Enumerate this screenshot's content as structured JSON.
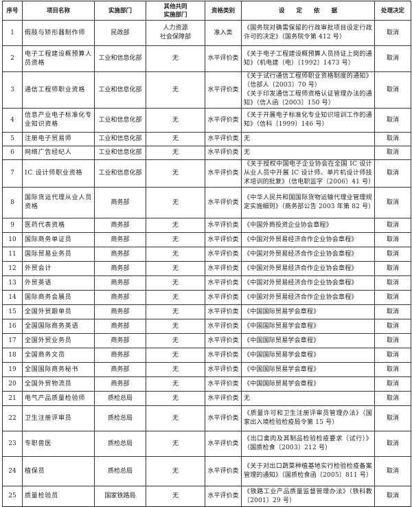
{
  "headers": {
    "index": "序号",
    "name": "项目名称",
    "dept": "实施部门",
    "co_dept_1": "其他共同",
    "co_dept_2": "实施部门",
    "category": "资格类别",
    "basis": "设　　定　　依　　据",
    "decision": "处理决定"
  },
  "rows": [
    {
      "no": "1",
      "name": "假肢与矫形器制作师",
      "dept": "民政部",
      "co": [
        "人力资源",
        "社会保障部"
      ],
      "category": "准入类",
      "basis": [
        "《国务院对确需保留的行政审批项目设定行政许可的决定》（国务院令第 412 号）"
      ],
      "decision": "取消"
    },
    {
      "no": "2",
      "name": "电子工程建设概预算人员资格",
      "dept": "工业和信息化部",
      "co": [
        "无"
      ],
      "category": "水平评价类",
      "basis": [
        "《关于电子工程建设概预算人员持证上岗的通知》（机电建（电）〔1992〕1473 号）"
      ],
      "decision": "取消"
    },
    {
      "no": "3",
      "name": "通信工程师职业资格",
      "dept": "工业和信息化部",
      "co": [
        "无"
      ],
      "category": "水平评价类",
      "basis": [
        "《关于试行通信工程师职业资格制度的通知》（信部人〔2003〕70 号）",
        "《关于印发通信工程师资格认证管理办法的通知》（信人函〔2003〕150 号）"
      ],
      "decision": "取消"
    },
    {
      "no": "4",
      "name": "信息产业电子标准化专业知识资格",
      "dept": "工业和信息化部",
      "co": [
        "无"
      ],
      "category": "水平评价类",
      "basis": [
        "《关于开展电子标准化专业知识培训工作的通知》（信科〔1999〕146 号）"
      ],
      "decision": "取消"
    },
    {
      "no": "5",
      "name": "注册电子贸易师",
      "dept": "工业和信息化部",
      "co": [
        "无"
      ],
      "category": "水平评价类",
      "basis": [
        "无"
      ],
      "decision": "取消"
    },
    {
      "no": "6",
      "name": "网络广告经纪人",
      "dept": "工业和信息化部",
      "co": [
        "无"
      ],
      "category": "水平评价类",
      "basis": [
        "无"
      ],
      "decision": "取消"
    },
    {
      "no": "7",
      "name": "IC 设计师职业资格",
      "dept": "工业和信息化部",
      "co": [
        "无"
      ],
      "category": "水平评价类",
      "basis": [
        "《关于授权中国电子企业协会在全国 IC 设计从业人员中开展 IC 设计师、单片机设计师技术培训的批复》（信电职监字〔2006〕41 号）"
      ],
      "decision": "取消"
    },
    {
      "no": "8",
      "name": "国际货运代理从业人员资格",
      "dept": "商务部",
      "co": [
        "无"
      ],
      "category": "水平评价类",
      "basis": [
        "《中华人民共和国国际货物运输代理业管理规定实施细则》（商务部公告 2003 年第 82 号）"
      ],
      "decision": "取消"
    },
    {
      "no": "9",
      "name": "医药代表资格",
      "dept": "商务部",
      "co": [
        "无"
      ],
      "category": "水平评价类",
      "basis": [
        "《中国外商投资企业协会章程》"
      ],
      "decision": "取消"
    },
    {
      "no": "10",
      "name": "国际商务单证员",
      "dept": "商务部",
      "co": [
        "无"
      ],
      "category": "水平评价类",
      "basis": [
        "《中国对外贸易经济合作企业协会章程》"
      ],
      "decision": "取消"
    },
    {
      "no": "11",
      "name": "国际贸易业务员",
      "dept": "商务部",
      "co": [
        "无"
      ],
      "category": "水平评价类",
      "basis": [
        "《中国对外贸易经济合作企业协会章程》"
      ],
      "decision": "取消"
    },
    {
      "no": "12",
      "name": "外贸会计",
      "dept": "商务部",
      "co": [
        "无"
      ],
      "category": "水平评价类",
      "basis": [
        "《中国对外贸易经济合作企业协会章程》"
      ],
      "decision": "取消"
    },
    {
      "no": "13",
      "name": "外贸英语",
      "dept": "商务部",
      "co": [
        "无"
      ],
      "category": "水平评价类",
      "basis": [
        "《中国对外贸易经济合作企业协会章程》"
      ],
      "decision": "取消"
    },
    {
      "no": "14",
      "name": "国际商务会展员",
      "dept": "商务部",
      "co": [
        "无"
      ],
      "category": "水平评价类",
      "basis": [
        "《中国对外贸易经济合作企业协会章程》"
      ],
      "decision": "取消"
    },
    {
      "no": "15",
      "name": "全国外贸跟单员",
      "dept": "商务部",
      "co": [
        "无"
      ],
      "category": "水平评价类",
      "basis": [
        "《中国国际贸易学会章程》"
      ],
      "decision": "取消"
    },
    {
      "no": "16",
      "name": "全国国际商务英语",
      "dept": "商务部",
      "co": [
        "无"
      ],
      "category": "水平评价类",
      "basis": [
        "《中国国际贸易学会章程》"
      ],
      "decision": "取消"
    },
    {
      "no": "17",
      "name": "全国外贸业务员",
      "dept": "商务部",
      "co": [
        "无"
      ],
      "category": "水平评价类",
      "basis": [
        "《中国国际贸易学会章程》"
      ],
      "decision": "取消"
    },
    {
      "no": "18",
      "name": "全国商务文员",
      "dept": "商务部",
      "co": [
        "无"
      ],
      "category": "水平评价类",
      "basis": [
        "《中国国际贸易学会章程》"
      ],
      "decision": "取消"
    },
    {
      "no": "19",
      "name": "全国国际商务秘书",
      "dept": "商务部",
      "co": [
        "无"
      ],
      "category": "水平评价类",
      "basis": [
        "《中国国际贸易学会章程》"
      ],
      "decision": "取消"
    },
    {
      "no": "20",
      "name": "全国外贸物流员",
      "dept": "商务部",
      "co": [
        "无"
      ],
      "category": "水平评价类",
      "basis": [
        "《中国国际贸易学会章程》"
      ],
      "decision": "取消"
    },
    {
      "no": "21",
      "name": "电气产品质量检验师",
      "dept": "质检总局",
      "co": [
        "无"
      ],
      "category": "水平评价类",
      "basis": [
        "无"
      ],
      "decision": "取消"
    },
    {
      "no": "22",
      "name": "卫生注册评审员",
      "dept": "质检总局",
      "co": [
        "无"
      ],
      "category": "水平评价类",
      "basis": [
        "《质量许可和卫生注册评审员管理办法》（国家出入境检验检疫局令第 15 号）"
      ],
      "decision": "取消"
    },
    {
      "no": "23",
      "name": "专职兽医",
      "dept": "质检总局",
      "co": [
        "无"
      ],
      "category": "水平评价类",
      "basis": [
        "《出口禽肉及其制品检验检疫要求（试行）》（国质检食〔2003〕212 号）"
      ],
      "decision": "取消"
    },
    {
      "no": "24",
      "name": "植保员",
      "dept": "质检总局",
      "co": [
        "无"
      ],
      "category": "水平评价类",
      "basis": [
        "《关于对出口蔬菜种植基地实行检验检疫备案管理的通知》（国质检食函〔2005〕811 号）"
      ],
      "decision": "取消"
    },
    {
      "no": "25",
      "name": "质量检验员",
      "dept": "国家铁路局",
      "co": [
        "无"
      ],
      "category": "水平评价类",
      "basis": [
        "《铁路工业产品质量监督管理办法》（铁科教〔2001〕29 号）"
      ],
      "decision": "取消"
    }
  ]
}
